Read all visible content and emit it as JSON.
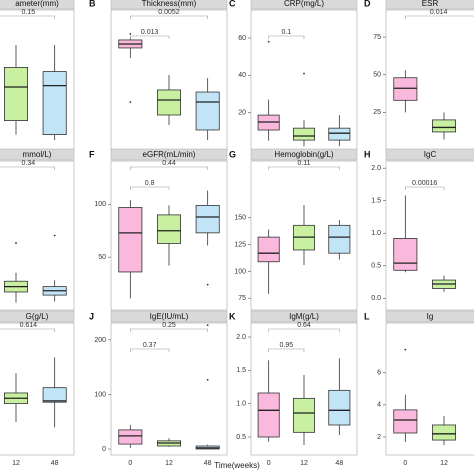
{
  "x_axis_title": "Time(weeks)",
  "chart_data": [
    {
      "type": "box",
      "title": "ameter(mm)",
      "categories": [
        "12",
        "48"
      ],
      "colors": [
        "#c8f0a0",
        "#c2e4f7"
      ],
      "ylim": [
        0,
        100
      ],
      "boxes": [
        {
          "q1": 21,
          "median": 45,
          "q3": 59,
          "low": 11,
          "high": 75
        },
        {
          "q1": 11,
          "median": 46,
          "q3": 56,
          "low": 7,
          "high": 75
        }
      ],
      "brackets": [
        {
          "label": "0.15",
          "to": 1
        }
      ]
    },
    {
      "type": "box",
      "letter": "B",
      "title": "Thickness(mm)",
      "categories": [
        "0",
        "12",
        "48"
      ],
      "colors": [
        "#f9b8dc",
        "#c8f0a0",
        "#c2e4f7"
      ],
      "ylim": [
        0,
        100
      ],
      "boxes": [
        {
          "q1": 72.9,
          "median": 75.7,
          "q3": 78.6,
          "low": 65.7,
          "high": 80.7,
          "outliers": [
            82.9,
            34.3
          ]
        },
        {
          "q1": 25,
          "median": 35.7,
          "q3": 42.9,
          "low": 17.9,
          "high": 53.6
        },
        {
          "q1": 14.3,
          "median": 34.3,
          "q3": 41.4,
          "low": 7.1,
          "high": 51.4
        }
      ],
      "brackets": [
        {
          "label": "0.0052",
          "from": 0,
          "to": 2
        },
        {
          "label": "0.013",
          "from": 0,
          "to": 1
        }
      ]
    },
    {
      "type": "box",
      "letter": "C",
      "title": "CRP(mg/L)",
      "categories": [
        "0",
        "12",
        "48"
      ],
      "colors": [
        "#f9b8dc",
        "#c8f0a0",
        "#c2e4f7"
      ],
      "ylim": [
        0,
        75
      ],
      "yticks": [
        20,
        40,
        60
      ],
      "boxes": [
        {
          "q1": 10.7,
          "median": 15,
          "q3": 18.7,
          "low": 5,
          "high": 27,
          "outliers": [
            58
          ]
        },
        {
          "q1": 5.3,
          "median": 7.5,
          "q3": 11.7,
          "low": 2,
          "high": 16,
          "outliers": [
            41
          ]
        },
        {
          "q1": 5.3,
          "median": 9,
          "q3": 11.7,
          "low": 2,
          "high": 18.7
        }
      ],
      "brackets": [
        {
          "label": "0.1",
          "from": 0,
          "to": 1
        }
      ]
    },
    {
      "type": "box",
      "letter": "D",
      "title": "ESR",
      "categories": [
        "0",
        "12"
      ],
      "colors": [
        "#f9b8dc",
        "#c8f0a0"
      ],
      "ylim": [
        0,
        93
      ],
      "yticks": [
        25,
        50,
        75
      ],
      "boxes": [
        {
          "q1": 33,
          "median": 41,
          "q3": 48,
          "low": 25,
          "high": 53
        },
        {
          "q1": 12,
          "median": 15,
          "q3": 20,
          "low": 7,
          "high": 25
        }
      ],
      "brackets": [
        {
          "label": "0.014",
          "from": 0
        }
      ]
    },
    {
      "type": "box",
      "title": "mmol/L)",
      "categories": [
        "12",
        "48"
      ],
      "colors": [
        "#c8f0a0",
        "#c2e4f7"
      ],
      "ylim": [
        0,
        100
      ],
      "boxes": [
        {
          "q1": 12.1,
          "median": 15.7,
          "q3": 19.3,
          "low": 5,
          "high": 25,
          "outliers": [
            45
          ]
        },
        {
          "q1": 10,
          "median": 12.9,
          "q3": 15.7,
          "low": 5.7,
          "high": 20,
          "outliers": [
            50
          ]
        }
      ],
      "brackets": [
        {
          "label": "0.34",
          "to": 1
        }
      ]
    },
    {
      "type": "box",
      "letter": "F",
      "title": "eGFR(mL/min)",
      "categories": [
        "0",
        "12",
        "48"
      ],
      "colors": [
        "#f9b8dc",
        "#c8f0a0",
        "#c2e4f7"
      ],
      "ylim": [
        0,
        141
      ],
      "yticks": [
        50,
        100
      ],
      "boxes": [
        {
          "q1": 36,
          "median": 73,
          "q3": 97,
          "low": 11,
          "high": 104
        },
        {
          "q1": 63,
          "median": 75,
          "q3": 90,
          "low": 42,
          "high": 99
        },
        {
          "q1": 73,
          "median": 88,
          "q3": 99,
          "low": 61,
          "high": 113,
          "outliers": [
            24
          ]
        }
      ],
      "brackets": [
        {
          "label": "0.44",
          "from": 0,
          "to": 2
        },
        {
          "label": "0.8",
          "from": 0,
          "to": 1
        }
      ]
    },
    {
      "type": "box",
      "letter": "G",
      "title": "Hemoglobin(g/L)",
      "categories": [
        "0",
        "12",
        "48"
      ],
      "colors": [
        "#f9b8dc",
        "#c8f0a0",
        "#c2e4f7"
      ],
      "ylim": [
        64,
        203
      ],
      "yticks": [
        75,
        100,
        125,
        150
      ],
      "boxes": [
        {
          "q1": 109,
          "median": 117,
          "q3": 132,
          "low": 79,
          "high": 139
        },
        {
          "q1": 120,
          "median": 132,
          "q3": 143,
          "low": 106,
          "high": 162
        },
        {
          "q1": 117,
          "median": 132,
          "q3": 143,
          "low": 111,
          "high": 148
        }
      ],
      "brackets": [
        {
          "label": "0.11",
          "from": 0,
          "to": 2
        }
      ]
    },
    {
      "type": "box",
      "letter": "H",
      "title": "IgC",
      "categories": [
        "0",
        "12"
      ],
      "colors": [
        "#f9b8dc",
        "#c8f0a0"
      ],
      "ylim": [
        -0.18,
        2.11
      ],
      "yticks": [
        {
          "value": 0,
          "label": "0.0"
        },
        {
          "value": 0.5,
          "label": "0.5"
        },
        {
          "value": 1,
          "label": "1.0"
        },
        1.5,
        {
          "value": 2,
          "label": "2.0"
        }
      ],
      "boxes": [
        {
          "q1": 0.43,
          "median": 0.54,
          "q3": 0.92,
          "low": 0.4,
          "high": 1.58
        },
        {
          "q1": 0.15,
          "median": 0.22,
          "q3": 0.28,
          "low": 0.1,
          "high": 0.35
        }
      ],
      "brackets": [
        {
          "label": "0.00016",
          "from": 0,
          "to": 1
        }
      ]
    },
    {
      "type": "box",
      "title": "G(g/L)",
      "categories": [
        "12",
        "48"
      ],
      "colors": [
        "#c8f0a0",
        "#c2e4f7"
      ],
      "ylim": [
        0,
        100
      ],
      "boxes": [
        {
          "q1": 39,
          "median": 43,
          "q3": 47,
          "low": 25,
          "high": 62
        },
        {
          "q1": 40,
          "median": 41,
          "q3": 51,
          "low": 21,
          "high": 74
        }
      ],
      "brackets": [
        {
          "label": "0.614",
          "to": 1
        }
      ]
    },
    {
      "type": "box",
      "letter": "J",
      "title": "IgE(IU/mL)",
      "categories": [
        "0",
        "12",
        "48"
      ],
      "colors": [
        "#f9b8dc",
        "#c8f0a0",
        "#c2e4f7"
      ],
      "ylim": [
        -11,
        231
      ],
      "yticks": [
        0,
        100,
        200
      ],
      "boxes": [
        {
          "q1": 9,
          "median": 24,
          "q3": 35,
          "low": 2,
          "high": 44
        },
        {
          "q1": 5.5,
          "median": 11,
          "q3": 15,
          "low": 4,
          "high": 20
        },
        {
          "q1": 0,
          "median": 2,
          "q3": 5.5,
          "low": 0,
          "high": 8,
          "outliers": [
            127,
            227
          ]
        }
      ],
      "brackets": [
        {
          "label": "0.25",
          "from": 0,
          "to": 2
        },
        {
          "label": "0.37",
          "from": 0,
          "to": 1
        }
      ]
    },
    {
      "type": "box",
      "letter": "K",
      "title": "IgM(g/L)",
      "categories": [
        "0",
        "12",
        "48"
      ],
      "colors": [
        "#f9b8dc",
        "#c8f0a0",
        "#c2e4f7"
      ],
      "ylim": [
        0.23,
        2.21
      ],
      "yticks": [
        0.5,
        {
          "value": 1,
          "label": "1.0"
        },
        1.5,
        {
          "value": 2,
          "label": "2.0"
        }
      ],
      "boxes": [
        {
          "q1": 0.5,
          "median": 0.9,
          "q3": 1.16,
          "low": 0.43,
          "high": 1.65
        },
        {
          "q1": 0.57,
          "median": 0.86,
          "q3": 1.08,
          "low": 0.38,
          "high": 1.43
        },
        {
          "q1": 0.68,
          "median": 0.9,
          "q3": 1.2,
          "low": 0.53,
          "high": 1.68
        }
      ],
      "brackets": [
        {
          "label": "0.64",
          "from": 0,
          "to": 2
        },
        {
          "label": "0.95",
          "from": 0,
          "to": 1
        }
      ]
    },
    {
      "type": "box",
      "letter": "L",
      "title": "Ig",
      "categories": [
        "0",
        "12"
      ],
      "colors": [
        "#f9b8dc",
        "#c8f0a0"
      ],
      "ylim": [
        0.88,
        9.1
      ],
      "yticks": [
        2,
        4,
        6
      ],
      "boxes": [
        {
          "q1": 2.25,
          "median": 3.06,
          "q3": 3.69,
          "low": 1.69,
          "high": 4.63,
          "outliers": [
            7.44
          ]
        },
        {
          "q1": 1.81,
          "median": 2.2,
          "q3": 2.75,
          "low": 1.5,
          "high": 3.3
        }
      ]
    }
  ]
}
